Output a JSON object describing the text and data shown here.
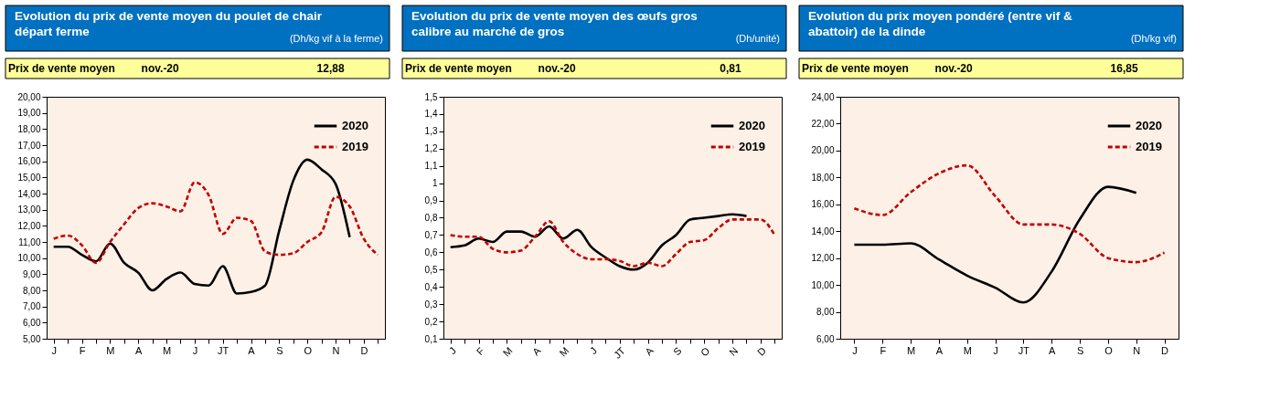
{
  "chart_data": [
    {
      "type": "line",
      "title": "Evolution du prix de vente moyen du  poulet de chair départ ferme",
      "subtitle": "(Dh/kg vif à la ferme)",
      "annotations": [
        "Prix de vente moyen",
        "nov.-20",
        "12,88"
      ],
      "legend": "top right",
      "grid": false,
      "categories": [
        "J",
        null,
        "F",
        null,
        "M",
        null,
        "A",
        null,
        "M",
        null,
        "J",
        null,
        "JT",
        null,
        "A",
        null,
        "S",
        null,
        "O",
        null,
        "N",
        null,
        "D",
        null
      ],
      "ylim": [
        5,
        20
      ],
      "yticks": [
        {
          "value": 5,
          "label": "5,00"
        },
        {
          "value": 6,
          "label": "6,00"
        },
        {
          "value": 7,
          "label": "7,00"
        },
        {
          "value": 8,
          "label": "8,00"
        },
        {
          "value": 9,
          "label": "9,00"
        },
        {
          "value": 10,
          "label": "10,00"
        },
        {
          "value": 11,
          "label": "11,00"
        },
        {
          "value": 12,
          "label": "12,00"
        },
        {
          "value": 13,
          "label": "13,00"
        },
        {
          "value": 14,
          "label": "14,00"
        },
        {
          "value": 15,
          "label": "15,00"
        },
        {
          "value": 16,
          "label": "16,00"
        },
        {
          "value": 17,
          "label": "17,00"
        },
        {
          "value": 18,
          "label": "18,00"
        },
        {
          "value": 19,
          "label": "19,00"
        },
        {
          "value": 20,
          "label": "20,00"
        }
      ],
      "series": [
        {
          "name": "2020",
          "color": "#000000",
          "line_style": "solid",
          "values": [
            10.7,
            10.7,
            10.2,
            9.8,
            10.9,
            9.7,
            9.1,
            8.0,
            8.7,
            9.1,
            8.4,
            8.3,
            9.5,
            7.8,
            7.9,
            8.3,
            11.7,
            14.8,
            16.1,
            15.5,
            14.6,
            11.3,
            null,
            null
          ]
        },
        {
          "name": "2019",
          "color": "#c00000",
          "line_style": "dashed",
          "values": [
            11.2,
            11.4,
            10.8,
            9.7,
            11.0,
            12.1,
            13.1,
            13.4,
            13.2,
            12.9,
            14.7,
            13.9,
            11.5,
            12.5,
            12.3,
            10.4,
            10.2,
            10.3,
            11.0,
            11.6,
            13.8,
            13.2,
            11.2,
            10.2
          ]
        }
      ]
    },
    {
      "type": "line",
      "title": "Evolution du prix de vente moyen des œufs gros calibre au marché de gros",
      "subtitle": "(Dh/unité)",
      "annotations": [
        "Prix de vente moyen",
        "nov.-20",
        "0,81"
      ],
      "legend": "top right",
      "grid": false,
      "categories": [
        "J",
        null,
        "F",
        null,
        "M",
        null,
        "A",
        null,
        "M",
        null,
        "J",
        null,
        "JT",
        null,
        "A",
        null,
        "S",
        null,
        "O",
        null,
        "N",
        null,
        "D",
        null
      ],
      "ylim": [
        0.1,
        1.5
      ],
      "yticks": [
        {
          "value": 0.1,
          "label": "0,1"
        },
        {
          "value": 0.2,
          "label": "0,2"
        },
        {
          "value": 0.3,
          "label": "0,3"
        },
        {
          "value": 0.4,
          "label": "0,4"
        },
        {
          "value": 0.5,
          "label": "0,5"
        },
        {
          "value": 0.6,
          "label": "0,6"
        },
        {
          "value": 0.7,
          "label": "0,7"
        },
        {
          "value": 0.8,
          "label": "0,8"
        },
        {
          "value": 0.9,
          "label": "0,9"
        },
        {
          "value": 1,
          "label": "1"
        },
        {
          "value": 1.1,
          "label": "1,1"
        },
        {
          "value": 1.2,
          "label": "1,2"
        },
        {
          "value": 1.3,
          "label": "1,3"
        },
        {
          "value": 1.4,
          "label": "1,4"
        },
        {
          "value": 1.5,
          "label": "1,5"
        }
      ],
      "series": [
        {
          "name": "2020",
          "color": "#000000",
          "line_style": "solid",
          "values": [
            0.63,
            0.64,
            0.68,
            0.66,
            0.72,
            0.72,
            0.69,
            0.75,
            0.68,
            0.73,
            0.63,
            0.57,
            0.52,
            0.5,
            0.54,
            0.64,
            0.7,
            0.79,
            0.8,
            0.81,
            0.82,
            0.81,
            null,
            null
          ]
        },
        {
          "name": "2019",
          "color": "#c00000",
          "line_style": "dashed",
          "values": [
            0.7,
            0.69,
            0.69,
            0.62,
            0.6,
            0.61,
            0.69,
            0.78,
            0.66,
            0.59,
            0.56,
            0.56,
            0.55,
            0.52,
            0.54,
            0.52,
            0.59,
            0.66,
            0.67,
            0.74,
            0.79,
            0.79,
            0.79,
            0.7
          ]
        }
      ]
    },
    {
      "type": "line",
      "title": "Evolution du prix moyen pondéré (entre vif & abattoir) de la dinde",
      "subtitle": "(Dh/kg vif)",
      "annotations": [
        "Prix de vente moyen",
        "nov.-20",
        "16,85"
      ],
      "legend": "top right",
      "grid": false,
      "categories": [
        "J",
        "F",
        "M",
        "A",
        "M",
        "J",
        "JT",
        "A",
        "S",
        "O",
        "N",
        "D"
      ],
      "ylim": [
        6,
        24
      ],
      "yticks": [
        {
          "value": 6,
          "label": "6,00"
        },
        {
          "value": 8,
          "label": "8,00"
        },
        {
          "value": 10,
          "label": "10,00"
        },
        {
          "value": 12,
          "label": "12,00"
        },
        {
          "value": 14,
          "label": "14,00"
        },
        {
          "value": 16,
          "label": "16,00"
        },
        {
          "value": 18,
          "label": "18,00"
        },
        {
          "value": 20,
          "label": "20,00"
        },
        {
          "value": 22,
          "label": "22,00"
        },
        {
          "value": 24,
          "label": "24,00"
        }
      ],
      "series": [
        {
          "name": "2020",
          "color": "#000000",
          "line_style": "solid",
          "values": [
            13.0,
            13.0,
            13.1,
            11.9,
            10.7,
            9.8,
            8.7,
            11.0,
            14.9,
            17.3,
            16.85,
            null
          ]
        },
        {
          "name": "2019",
          "color": "#c00000",
          "line_style": "dashed",
          "values": [
            15.7,
            15.2,
            16.9,
            18.3,
            18.9,
            16.6,
            14.5,
            14.5,
            13.8,
            12.0,
            11.7,
            12.4
          ]
        }
      ]
    }
  ]
}
